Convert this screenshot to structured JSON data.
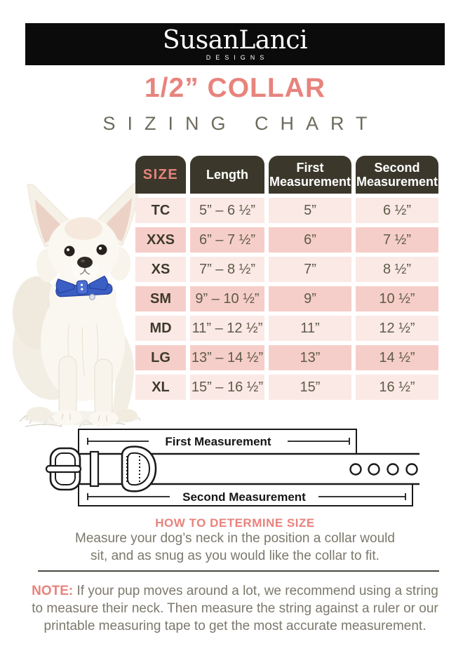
{
  "brand": {
    "wordmark": "SusanLanci",
    "tagline": "DESIGNS"
  },
  "title": {
    "main": "1/2” COLLAR",
    "sub": "SIZING CHART"
  },
  "table": {
    "columns": [
      "SIZE",
      "Length",
      "First Measurement",
      "Second Measurement"
    ],
    "rows": [
      {
        "size": "TC",
        "length": "5” – 6 ½”",
        "first": "5”",
        "second": "6 ½”"
      },
      {
        "size": "XXS",
        "length": "6” – 7 ½”",
        "first": "6”",
        "second": "7 ½”"
      },
      {
        "size": "XS",
        "length": "7” – 8 ½”",
        "first": "7”",
        "second": "8 ½”"
      },
      {
        "size": "SM",
        "length": "9” – 10 ½”",
        "first": "9”",
        "second": "10 ½”"
      },
      {
        "size": "MD",
        "length": "11” – 12 ½”",
        "first": "11”",
        "second": "12 ½”"
      },
      {
        "size": "LG",
        "length": "13” – 14 ½”",
        "first": "13”",
        "second": "14 ½”"
      },
      {
        "size": "XL",
        "length": "15” – 16 ½”",
        "first": "15”",
        "second": "16 ½”"
      }
    ]
  },
  "diagram": {
    "first_label": "First Measurement",
    "second_label": "Second Measurement"
  },
  "how_to": {
    "heading": "HOW TO DETERMINE SIZE",
    "line1": "Measure your dog’s neck in the position a collar would",
    "line2": "sit, and as snug as you would  like the collar to fit."
  },
  "note": {
    "label": "NOTE:",
    "lines": [
      "If your pup moves around a lot, we recommend using a string",
      "to measure their neck. Then measure the string against a ruler or our",
      "printable measuring tape to get the most accurate measurement."
    ]
  },
  "colors": {
    "accent_coral": "#E8837D",
    "table_header_dark": "#3B382B",
    "row_light_pink": "#FBE9E6",
    "row_dark_pink": "#F6CEC9",
    "table_text_olive": "#5E5B49",
    "body_text_gray": "#7C786C",
    "header_bar_black": "#0B0B0B",
    "dog_collar_blue": "#3A5EC4"
  }
}
